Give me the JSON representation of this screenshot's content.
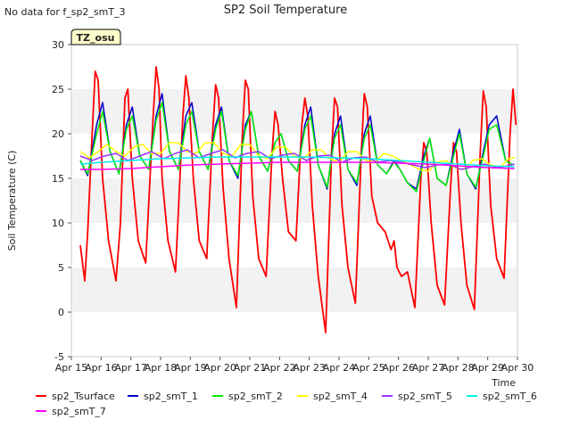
{
  "header": {
    "no_data_text": "No data for f_sp2_smT_3"
  },
  "tz_badge": {
    "label": "TZ_osu",
    "bg_color": "#ffffcc",
    "text_color": "#aa0000"
  },
  "chart_data": {
    "type": "line",
    "title": "SP2 Soil Temperature",
    "xlabel": "Time",
    "ylabel": "Soil Temperature (C)",
    "xlim": [
      0,
      15
    ],
    "ylim": [
      -5,
      30
    ],
    "x_ticks": [
      0,
      1,
      2,
      3,
      4,
      5,
      6,
      7,
      8,
      9,
      10,
      11,
      12,
      13,
      14,
      15
    ],
    "x_tick_labels": [
      "Apr 15",
      "Apr 16",
      "Apr 17",
      "Apr 18",
      "Apr 19",
      "Apr 20",
      "Apr 21",
      "Apr 22",
      "Apr 23",
      "Apr 24",
      "Apr 25",
      "Apr 26",
      "Apr 27",
      "Apr 28",
      "Apr 29",
      "Apr 30"
    ],
    "y_ticks": [
      -5,
      0,
      5,
      10,
      15,
      20,
      25,
      30
    ],
    "y_tick_labels": [
      "-5",
      "0",
      "5",
      "10",
      "15",
      "20",
      "25",
      "30"
    ],
    "grid": "horizontal bands",
    "legend_position": "bottom",
    "series": [
      {
        "name": "sp2_Tsurface",
        "color": "#ff0000",
        "x": [
          0.3,
          0.45,
          0.55,
          0.7,
          0.8,
          0.9,
          1.05,
          1.25,
          1.5,
          1.65,
          1.8,
          1.9,
          2.05,
          2.25,
          2.5,
          2.75,
          2.85,
          2.95,
          3.05,
          3.25,
          3.5,
          3.75,
          3.85,
          3.95,
          4.1,
          4.3,
          4.55,
          4.75,
          4.85,
          4.95,
          5.1,
          5.3,
          5.55,
          5.75,
          5.85,
          5.95,
          6.1,
          6.3,
          6.55,
          6.75,
          6.85,
          6.95,
          7.1,
          7.3,
          7.55,
          7.75,
          7.85,
          7.95,
          8.1,
          8.3,
          8.55,
          8.75,
          8.85,
          8.95,
          9.1,
          9.3,
          9.55,
          9.75,
          9.85,
          9.95,
          10.1,
          10.3,
          10.55,
          10.75,
          10.85,
          10.95,
          11.1,
          11.3,
          11.55,
          11.75,
          11.85,
          11.95,
          12.1,
          12.3,
          12.55,
          12.75,
          12.85,
          12.95,
          13.1,
          13.3,
          13.55,
          13.75,
          13.85,
          13.95,
          14.1,
          14.3,
          14.55,
          14.75,
          14.85,
          14.95
        ],
        "y": [
          7.5,
          3.5,
          9,
          20,
          27,
          26,
          15,
          8,
          3.5,
          10,
          24,
          25,
          15,
          8,
          5.5,
          22,
          27.5,
          25,
          15,
          8,
          4.5,
          22,
          26.5,
          24,
          15,
          8,
          6,
          20,
          25.5,
          24,
          14,
          6,
          0.5,
          20,
          26,
          25,
          13,
          6,
          4,
          18,
          22.5,
          21,
          15,
          9,
          8,
          21,
          24,
          22,
          12,
          4,
          -2.3,
          18,
          24,
          23,
          12,
          5,
          1,
          18,
          24.5,
          23,
          13,
          10,
          9,
          7,
          8,
          5,
          4,
          4.5,
          0.5,
          15,
          19,
          18,
          10,
          3,
          0.8,
          14,
          19,
          18,
          10,
          3,
          0.3,
          18,
          24.8,
          23,
          12,
          6,
          3.8,
          20,
          25,
          21
        ],
        "legend_label": "sp2_Tsurface"
      },
      {
        "name": "sp2_smT_1",
        "color": "#0000cc",
        "x": [
          0.3,
          0.55,
          0.85,
          1.05,
          1.3,
          1.6,
          1.85,
          2.05,
          2.3,
          2.6,
          2.85,
          3.05,
          3.3,
          3.6,
          3.85,
          4.05,
          4.3,
          4.6,
          4.85,
          5.05,
          5.3,
          5.6,
          5.85,
          6.05,
          6.3,
          6.6,
          6.85,
          7.05,
          7.3,
          7.6,
          7.85,
          8.05,
          8.3,
          8.6,
          8.85,
          9.05,
          9.3,
          9.6,
          9.85,
          10.05,
          10.3,
          10.6,
          10.85,
          11.05,
          11.3,
          11.6,
          11.85,
          12.05,
          12.3,
          12.6,
          12.85,
          13.05,
          13.3,
          13.6,
          13.85,
          14.05,
          14.3,
          14.6,
          14.85
        ],
        "y": [
          17,
          15.3,
          21,
          23.5,
          18,
          15.5,
          21,
          23,
          17.5,
          16,
          22,
          24.5,
          18,
          16,
          22,
          23.5,
          18,
          16,
          21,
          23,
          17,
          15,
          21,
          22.5,
          17.5,
          15.8,
          19,
          20,
          17,
          15.8,
          21,
          23,
          16.5,
          13.8,
          20,
          22,
          16,
          14.2,
          20,
          22,
          16.5,
          15.5,
          17,
          16,
          14.5,
          13.8,
          17.5,
          19.5,
          15,
          14.2,
          18,
          20.5,
          15.5,
          13.8,
          18,
          21,
          22,
          17,
          16.5
        ],
        "legend_label": "sp2_smT_1"
      },
      {
        "name": "sp2_smT_2",
        "color": "#00ee00",
        "x": [
          0.3,
          0.55,
          0.85,
          1.05,
          1.3,
          1.6,
          1.85,
          2.05,
          2.3,
          2.6,
          2.85,
          3.05,
          3.3,
          3.6,
          3.85,
          4.05,
          4.3,
          4.6,
          4.85,
          5.05,
          5.3,
          5.6,
          5.85,
          6.05,
          6.3,
          6.6,
          6.85,
          7.05,
          7.3,
          7.6,
          7.85,
          8.05,
          8.3,
          8.6,
          8.85,
          9.05,
          9.3,
          9.6,
          9.85,
          10.05,
          10.3,
          10.6,
          10.85,
          11.05,
          11.3,
          11.6,
          11.85,
          12.05,
          12.3,
          12.6,
          12.85,
          13.05,
          13.3,
          13.6,
          13.85,
          14.05,
          14.3,
          14.6,
          14.85
        ],
        "y": [
          17,
          15.5,
          20,
          22.5,
          18,
          15.5,
          20.5,
          22,
          17.5,
          16,
          21.5,
          23.5,
          18,
          16,
          21,
          22.5,
          18,
          16,
          20.5,
          22.5,
          17,
          15.3,
          20.5,
          22.5,
          17.5,
          15.8,
          19,
          20,
          17,
          15.8,
          20.5,
          22,
          16.5,
          14,
          19.5,
          21,
          16,
          14.5,
          19.5,
          21,
          16.5,
          15.5,
          16.8,
          16,
          14.5,
          13.5,
          17,
          19.5,
          15,
          14.2,
          17.5,
          20,
          15.5,
          14,
          17.5,
          20.5,
          21,
          17,
          16.5
        ],
        "legend_label": "sp2_smT_2"
      },
      {
        "name": "sp2_smT_4",
        "color": "#ffff00",
        "x": [
          0.3,
          0.6,
          0.9,
          1.2,
          1.5,
          1.8,
          2.1,
          2.4,
          2.7,
          3.0,
          3.3,
          3.6,
          3.9,
          4.2,
          4.5,
          4.8,
          5.1,
          5.4,
          5.7,
          6.0,
          6.3,
          6.6,
          6.9,
          7.2,
          7.5,
          7.8,
          8.1,
          8.4,
          8.7,
          9.0,
          9.3,
          9.6,
          9.9,
          10.2,
          10.5,
          10.8,
          11.1,
          11.4,
          11.7,
          12.0,
          12.3,
          12.6,
          12.9,
          13.2,
          13.5,
          13.8,
          14.1,
          14.4,
          14.7,
          14.9
        ],
        "y": [
          18,
          17.3,
          18,
          18.8,
          18,
          17.5,
          18.5,
          18.8,
          17.8,
          17.8,
          19,
          19,
          18,
          17.8,
          19,
          19,
          17.8,
          17.5,
          18.8,
          18.8,
          17.5,
          17.2,
          18.5,
          18.5,
          17.5,
          17.2,
          18.2,
          18.2,
          17.2,
          16.8,
          18,
          18,
          17,
          16.8,
          17.8,
          17.5,
          17,
          16.5,
          16,
          15.8,
          16.8,
          17,
          16.2,
          16,
          17,
          17.2,
          16.5,
          16.2,
          17.2,
          17.3
        ],
        "legend_label": "sp2_smT_4"
      },
      {
        "name": "sp2_smT_5",
        "color": "#9933ff",
        "x": [
          0.3,
          0.7,
          1.1,
          1.5,
          1.9,
          2.3,
          2.7,
          3.1,
          3.5,
          3.9,
          4.3,
          4.7,
          5.1,
          5.5,
          5.9,
          6.3,
          6.7,
          7.1,
          7.5,
          7.9,
          8.3,
          8.7,
          9.1,
          9.5,
          9.9,
          10.3,
          10.7,
          11.1,
          11.5,
          11.9,
          12.3,
          12.7,
          13.1,
          13.5,
          13.9,
          14.3,
          14.7,
          14.9
        ],
        "y": [
          17.5,
          17,
          17.5,
          17.8,
          17,
          17.5,
          18,
          17.2,
          17.8,
          18.2,
          17.3,
          17.8,
          18.2,
          17.3,
          17.8,
          18,
          17.2,
          17.6,
          17.8,
          17,
          17.5,
          17.6,
          16.8,
          17.3,
          17.4,
          16.8,
          17,
          16.8,
          16.5,
          16.2,
          16.5,
          16.6,
          16,
          16.3,
          16.6,
          16.2,
          16.4,
          16.6
        ],
        "legend_label": "sp2_smT_5"
      },
      {
        "name": "sp2_smT_6",
        "color": "#00eeee",
        "x": [
          0.3,
          1.0,
          2.0,
          3.0,
          4.0,
          5.0,
          6.0,
          7.0,
          8.0,
          9.0,
          10.0,
          11.0,
          12.0,
          13.0,
          14.0,
          14.9
        ],
        "y": [
          16.6,
          16.8,
          17.0,
          17.2,
          17.3,
          17.4,
          17.4,
          17.4,
          17.4,
          17.3,
          17.2,
          17.0,
          16.8,
          16.6,
          16.4,
          16.3
        ],
        "legend_label": "sp2_smT_6"
      },
      {
        "name": "sp2_smT_7",
        "color": "#ff00ff",
        "x": [
          0.3,
          1.0,
          2.0,
          3.0,
          4.0,
          5.0,
          6.0,
          7.0,
          8.0,
          9.0,
          10.0,
          11.0,
          12.0,
          13.0,
          14.0,
          14.9
        ],
        "y": [
          16.0,
          16.0,
          16.1,
          16.3,
          16.5,
          16.6,
          16.7,
          16.8,
          16.8,
          16.8,
          16.8,
          16.7,
          16.6,
          16.4,
          16.2,
          16.1
        ],
        "legend_label": "sp2_smT_7"
      }
    ]
  }
}
